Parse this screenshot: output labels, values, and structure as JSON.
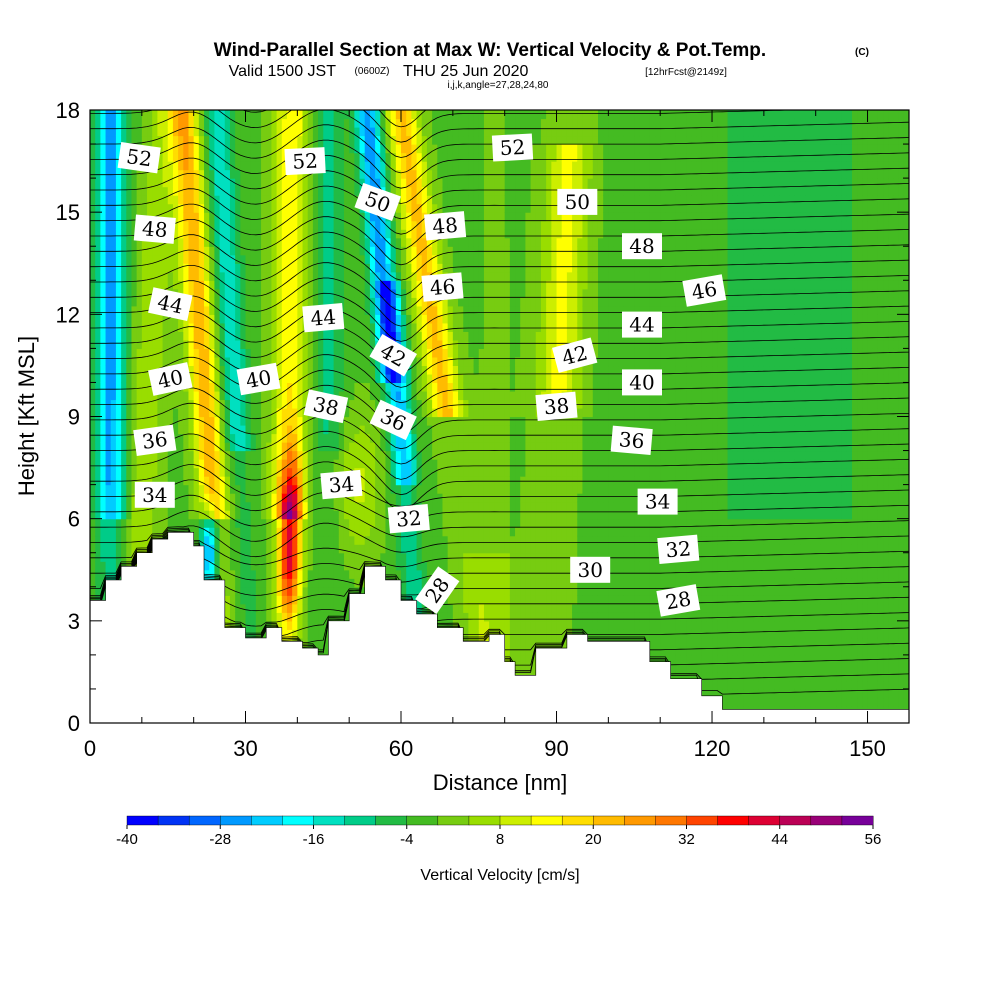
{
  "title": {
    "main": "Wind-Parallel Section at Max W: Vertical Velocity & Pot.Temp.",
    "units": "(C)",
    "valid_pre": "Valid 1500 JST",
    "valid_z": "(0600Z)",
    "valid_post": "THU 25 Jun 2020",
    "fcst": "[12hrFcst@2149z]",
    "ijk": "i,j,k,angle=27,28,24,80"
  },
  "chart_data": {
    "type": "heatmap",
    "xlabel": "Distance [nm]",
    "ylabel": "Height [Kft MSL]",
    "xlim": [
      0,
      158
    ],
    "ylim": [
      0,
      18
    ],
    "x_ticks": [
      0,
      30,
      60,
      90,
      120,
      150
    ],
    "y_ticks": [
      0,
      3,
      6,
      9,
      12,
      15,
      18
    ],
    "colorbar": {
      "title": "Vertical Velocity [cm/s]",
      "tick_labels": [
        "-40",
        "-28",
        "-16",
        "-4",
        "8",
        "20",
        "32",
        "44",
        "56"
      ],
      "min": -40,
      "max": 56,
      "step": 4,
      "colors": [
        "#0000ff",
        "#0033f5",
        "#0066ff",
        "#0099ff",
        "#00ccff",
        "#00ffff",
        "#00e0c0",
        "#00cc88",
        "#22bb44",
        "#44bb22",
        "#77cc11",
        "#99dd00",
        "#ccee00",
        "#ffff00",
        "#ffdd00",
        "#ffbb00",
        "#ff9900",
        "#ff7700",
        "#ff4400",
        "#ff0000",
        "#dd0033",
        "#bb0055",
        "#990077",
        "#770099"
      ]
    },
    "updrafts": [
      {
        "x": 38.5,
        "peak_w": 44,
        "z_peak": 5.2
      },
      {
        "x": 21,
        "peak_w": 24,
        "z_peak": 14
      },
      {
        "x": 63,
        "peak_w": 22,
        "z_peak": 16
      },
      {
        "x": 91,
        "peak_w": 14,
        "z_peak": 14
      }
    ],
    "downdrafts": [
      {
        "x": 4,
        "peak_w": -24,
        "z_peak": 12
      },
      {
        "x": 23,
        "peak_w": -30,
        "z_peak": 5
      },
      {
        "x": 55,
        "peak_w": -22,
        "z_peak": 15
      },
      {
        "x": 60,
        "peak_w": -20,
        "z_peak": 9
      }
    ],
    "terrain_heights": [
      {
        "x": 0,
        "z": 3.6
      },
      {
        "x": 3,
        "z": 4.2
      },
      {
        "x": 6,
        "z": 4.6
      },
      {
        "x": 9,
        "z": 5.0
      },
      {
        "x": 12,
        "z": 5.4
      },
      {
        "x": 15,
        "z": 5.6
      },
      {
        "x": 20,
        "z": 5.2
      },
      {
        "x": 22,
        "z": 4.2
      },
      {
        "x": 26,
        "z": 2.8
      },
      {
        "x": 30,
        "z": 2.5
      },
      {
        "x": 34,
        "z": 2.8
      },
      {
        "x": 37,
        "z": 2.4
      },
      {
        "x": 41,
        "z": 2.2
      },
      {
        "x": 44,
        "z": 2.0
      },
      {
        "x": 46,
        "z": 3.0
      },
      {
        "x": 50,
        "z": 3.8
      },
      {
        "x": 53,
        "z": 4.6
      },
      {
        "x": 57,
        "z": 4.2
      },
      {
        "x": 60,
        "z": 3.6
      },
      {
        "x": 63,
        "z": 3.2
      },
      {
        "x": 67,
        "z": 2.8
      },
      {
        "x": 72,
        "z": 2.4
      },
      {
        "x": 77,
        "z": 2.6
      },
      {
        "x": 80,
        "z": 1.8
      },
      {
        "x": 82,
        "z": 1.4
      },
      {
        "x": 86,
        "z": 2.2
      },
      {
        "x": 92,
        "z": 2.6
      },
      {
        "x": 96,
        "z": 2.4
      },
      {
        "x": 104,
        "z": 2.4
      },
      {
        "x": 108,
        "z": 1.8
      },
      {
        "x": 112,
        "z": 1.3
      },
      {
        "x": 118,
        "z": 0.8
      },
      {
        "x": 122,
        "z": 0.4
      },
      {
        "x": 132,
        "z": 0.4
      },
      {
        "x": 145,
        "z": 0.4
      },
      {
        "x": 158,
        "z": 0.4
      }
    ],
    "theta_labels": [
      {
        "text": "52",
        "x": 9.5,
        "z": 16.6,
        "rot": 8
      },
      {
        "text": "52",
        "x": 41.5,
        "z": 16.5,
        "rot": -3
      },
      {
        "text": "52",
        "x": 81.5,
        "z": 16.9,
        "rot": -3
      },
      {
        "text": "50",
        "x": 55.5,
        "z": 15.3,
        "rot": 20
      },
      {
        "text": "50",
        "x": 94,
        "z": 15.3,
        "rot": 0
      },
      {
        "text": "48",
        "x": 12.5,
        "z": 14.5,
        "rot": 5
      },
      {
        "text": "48",
        "x": 68.5,
        "z": 14.6,
        "rot": -5
      },
      {
        "text": "48",
        "x": 106.5,
        "z": 14.0,
        "rot": 0
      },
      {
        "text": "46",
        "x": 68,
        "z": 12.8,
        "rot": -5
      },
      {
        "text": "46",
        "x": 118.5,
        "z": 12.7,
        "rot": -10
      },
      {
        "text": "44",
        "x": 15.5,
        "z": 12.3,
        "rot": 12
      },
      {
        "text": "44",
        "x": 45,
        "z": 11.9,
        "rot": -5
      },
      {
        "text": "44",
        "x": 106.5,
        "z": 11.7,
        "rot": 0
      },
      {
        "text": "42",
        "x": 58.5,
        "z": 10.8,
        "rot": 30
      },
      {
        "text": "42",
        "x": 93.5,
        "z": 10.8,
        "rot": -15
      },
      {
        "text": "40",
        "x": 15.5,
        "z": 10.1,
        "rot": -12
      },
      {
        "text": "40",
        "x": 32.5,
        "z": 10.1,
        "rot": -10
      },
      {
        "text": "40",
        "x": 106.5,
        "z": 10.0,
        "rot": 0
      },
      {
        "text": "38",
        "x": 45.5,
        "z": 9.3,
        "rot": 12
      },
      {
        "text": "38",
        "x": 90,
        "z": 9.3,
        "rot": -5
      },
      {
        "text": "36",
        "x": 12.5,
        "z": 8.3,
        "rot": -8
      },
      {
        "text": "36",
        "x": 58.5,
        "z": 8.9,
        "rot": 25
      },
      {
        "text": "36",
        "x": 104.5,
        "z": 8.3,
        "rot": 5
      },
      {
        "text": "34",
        "x": 12.5,
        "z": 6.7,
        "rot": 0
      },
      {
        "text": "34",
        "x": 48.5,
        "z": 7.0,
        "rot": -5
      },
      {
        "text": "34",
        "x": 109.5,
        "z": 6.5,
        "rot": 0
      },
      {
        "text": "32",
        "x": 61.5,
        "z": 6.0,
        "rot": -5
      },
      {
        "text": "32",
        "x": 113.5,
        "z": 5.1,
        "rot": -5
      },
      {
        "text": "30",
        "x": 96.5,
        "z": 4.5,
        "rot": 0
      },
      {
        "text": "28",
        "x": 67,
        "z": 3.9,
        "rot": -55
      },
      {
        "text": "28",
        "x": 113.5,
        "z": 3.6,
        "rot": -10
      }
    ]
  }
}
